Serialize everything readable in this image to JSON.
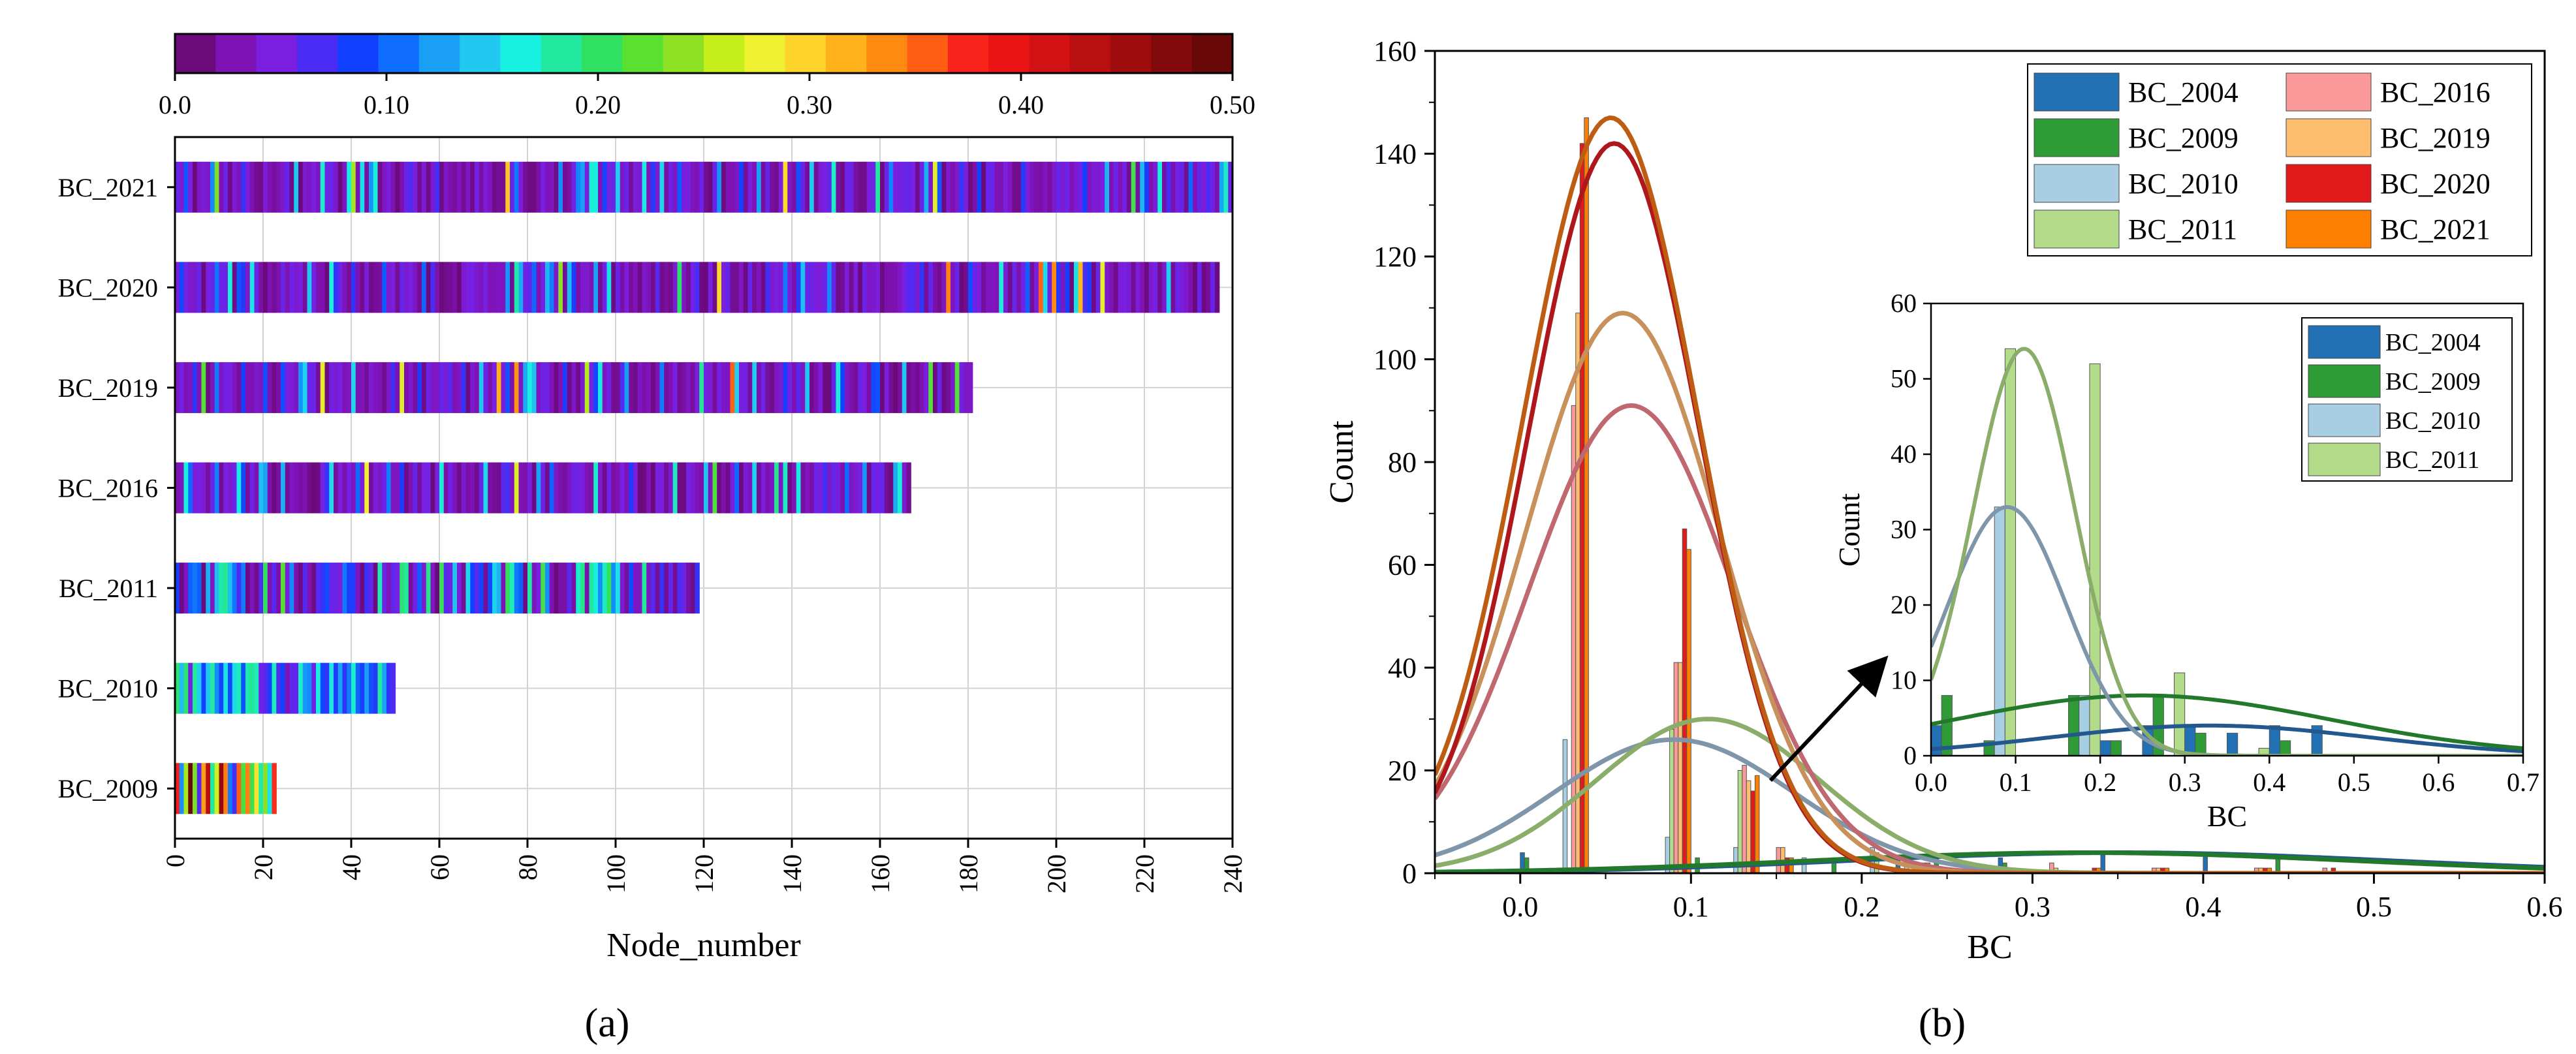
{
  "chart_data": [
    {
      "panel": "a",
      "type": "heatmap",
      "caption": "(a)",
      "xlabel": "Node_number",
      "ylabel": "",
      "xlim": [
        0,
        240
      ],
      "xticks": [
        "0",
        "20",
        "40",
        "60",
        "80",
        "100",
        "120",
        "140",
        "160",
        "180",
        "200",
        "220",
        "240"
      ],
      "colorbar": {
        "ticks": [
          "0.0",
          "0.10",
          "0.20",
          "0.30",
          "0.40",
          "0.50"
        ],
        "range": [
          0,
          0.5
        ],
        "stops": [
          "#6b0a7a",
          "#7f12b5",
          "#7a1fe0",
          "#4b2cf5",
          "#1240ff",
          "#0f6dff",
          "#19a0f5",
          "#21c8f0",
          "#18f0e0",
          "#22e8a0",
          "#30e060",
          "#5ae030",
          "#8ee025",
          "#c6ee1a",
          "#eef030",
          "#ffd42a",
          "#ffb21c",
          "#ff8a12",
          "#ff5e14",
          "#f8241c",
          "#ea1414",
          "#d21212",
          "#b80f10",
          "#9e0c0e",
          "#830a0c",
          "#680808"
        ]
      },
      "rows": [
        {
          "label": "BC_2021",
          "nodes": 240
        },
        {
          "label": "BC_2020",
          "nodes": 237
        },
        {
          "label": "BC_2019",
          "nodes": 181
        },
        {
          "label": "BC_2016",
          "nodes": 167
        },
        {
          "label": "BC_2011",
          "nodes": 119
        },
        {
          "label": "BC_2010",
          "nodes": 50
        },
        {
          "label": "BC_2009",
          "nodes": 23
        }
      ]
    },
    {
      "panel": "b",
      "type": "bar",
      "caption": "(b)",
      "xlabel": "BC",
      "ylabel": "Count",
      "xlim": [
        -0.05,
        0.6
      ],
      "ylim": [
        0,
        160
      ],
      "xticks": [
        "0.0",
        "0.1",
        "0.2",
        "0.3",
        "0.4",
        "0.5",
        "0.6"
      ],
      "yticks": [
        "0",
        "20",
        "40",
        "60",
        "80",
        "100",
        "120",
        "140",
        "160"
      ],
      "bin_centers": [
        0.01,
        0.03,
        0.05,
        0.09,
        0.11,
        0.13,
        0.15,
        0.17,
        0.19,
        0.21,
        0.23,
        0.25,
        0.27,
        0.29,
        0.31,
        0.33,
        0.35,
        0.37,
        0.39,
        0.41,
        0.43,
        0.45,
        0.47,
        0.49
      ],
      "series": [
        {
          "name": "BC_2004",
          "color": "#2271b5",
          "values": [
            4,
            0,
            0,
            0,
            0,
            0,
            0,
            0,
            0,
            0,
            3,
            0,
            0,
            3,
            0,
            0,
            4,
            0,
            0,
            4,
            0,
            0,
            0,
            0
          ]
        },
        {
          "name": "BC_2009",
          "color": "#2e9b36",
          "values": [
            3,
            0,
            0,
            0,
            3,
            0,
            0,
            0,
            3,
            0,
            0,
            3,
            0,
            2,
            0,
            0,
            0,
            0,
            0,
            0,
            0,
            3,
            0,
            0
          ]
        },
        {
          "name": "BC_2010",
          "color": "#a7cee3",
          "values": [
            0,
            26,
            0,
            7,
            0,
            5,
            0,
            3,
            0,
            5,
            3,
            0,
            0,
            0,
            0,
            0,
            0,
            0,
            0,
            0,
            0,
            0,
            0,
            0
          ]
        },
        {
          "name": "BC_2011",
          "color": "#b2dc8a",
          "values": [
            0,
            0,
            0,
            28,
            0,
            20,
            0,
            0,
            0,
            4,
            0,
            0,
            0,
            0,
            0,
            0,
            0,
            0,
            0,
            0,
            0,
            0,
            0,
            0
          ]
        },
        {
          "name": "BC_2016",
          "color": "#f9999a",
          "values": [
            0,
            91,
            0,
            41,
            0,
            21,
            5,
            0,
            0,
            0,
            2,
            0,
            1,
            0,
            2,
            0,
            0,
            1,
            0,
            0,
            1,
            0,
            1,
            0
          ]
        },
        {
          "name": "BC_2019",
          "color": "#fdbf6f",
          "values": [
            0,
            109,
            0,
            41,
            0,
            18,
            5,
            0,
            0,
            0,
            2,
            0,
            1,
            0,
            1,
            0,
            0,
            1,
            0,
            0,
            1,
            0,
            0,
            0
          ]
        },
        {
          "name": "BC_2020",
          "color": "#e31a1c",
          "values": [
            0,
            142,
            0,
            67,
            0,
            16,
            3,
            0,
            0,
            0,
            2,
            0,
            1,
            0,
            0,
            1,
            0,
            1,
            0,
            0,
            1,
            0,
            1,
            0
          ]
        },
        {
          "name": "BC_2021",
          "color": "#ff7f00",
          "values": [
            0,
            147,
            0,
            63,
            0,
            19,
            3,
            0,
            0,
            0,
            2,
            0,
            1,
            0,
            0,
            1,
            0,
            1,
            0,
            0,
            1,
            0,
            0,
            0
          ]
        }
      ],
      "fits": [
        {
          "name": "BC_2004",
          "color": "#23588f",
          "mean": 0.35,
          "sd": 0.16,
          "peak": 4
        },
        {
          "name": "BC_2009",
          "color": "#23792b",
          "mean": 0.33,
          "sd": 0.16,
          "peak": 4
        },
        {
          "name": "BC_2010",
          "color": "#7f95aa",
          "mean": 0.09,
          "sd": 0.07,
          "peak": 26
        },
        {
          "name": "BC_2011",
          "color": "#8aad6a",
          "mean": 0.11,
          "sd": 0.065,
          "peak": 30
        },
        {
          "name": "BC_2016",
          "color": "#bf6870",
          "mean": 0.065,
          "sd": 0.06,
          "peak": 91
        },
        {
          "name": "BC_2019",
          "color": "#c8905a",
          "mean": 0.06,
          "sd": 0.057,
          "peak": 109
        },
        {
          "name": "BC_2020",
          "color": "#b0171c",
          "mean": 0.055,
          "sd": 0.05,
          "peak": 142
        },
        {
          "name": "BC_2021",
          "color": "#bd5c12",
          "mean": 0.053,
          "sd": 0.051,
          "peak": 147
        }
      ],
      "legend": [
        "BC_2004",
        "BC_2016",
        "BC_2009",
        "BC_2019",
        "BC_2010",
        "BC_2020",
        "BC_2011",
        "BC_2021"
      ],
      "inset": {
        "xlabel": "BC",
        "ylabel": "Count",
        "xlim": [
          0,
          0.7
        ],
        "ylim": [
          0,
          60
        ],
        "xticks": [
          "0.0",
          "0.1",
          "0.2",
          "0.3",
          "0.4",
          "0.5",
          "0.6",
          "0.7"
        ],
        "yticks": [
          "0",
          "10",
          "20",
          "30",
          "40",
          "50",
          "60"
        ],
        "bin_centers": [
          0.025,
          0.075,
          0.125,
          0.175,
          0.225,
          0.275,
          0.325,
          0.375,
          0.425,
          0.475,
          0.525,
          0.575,
          0.625,
          0.675
        ],
        "series": [
          {
            "name": "BC_2004",
            "color": "#2271b5",
            "values": [
              4,
              0,
              0,
              0,
              2,
              4,
              4,
              3,
              4,
              4,
              0,
              0,
              0,
              0
            ]
          },
          {
            "name": "BC_2009",
            "color": "#2e9b36",
            "values": [
              8,
              2,
              0,
              8,
              2,
              8,
              3,
              0,
              2,
              0,
              0,
              0,
              0,
              0
            ]
          },
          {
            "name": "BC_2010",
            "color": "#a7cee3",
            "values": [
              0,
              33,
              0,
              8,
              0,
              0,
              0,
              0,
              0,
              0,
              0,
              0,
              0,
              0
            ]
          },
          {
            "name": "BC_2011",
            "color": "#b2dc8a",
            "values": [
              0,
              54,
              0,
              52,
              0,
              11,
              0,
              1,
              0,
              0,
              0,
              0,
              0,
              0
            ]
          }
        ],
        "fits": [
          {
            "name": "BC_2004",
            "color": "#23588f",
            "mean": 0.33,
            "sd": 0.19,
            "peak": 4
          },
          {
            "name": "BC_2009",
            "color": "#23792b",
            "mean": 0.25,
            "sd": 0.22,
            "peak": 8
          },
          {
            "name": "BC_2010",
            "color": "#7f95aa",
            "mean": 0.09,
            "sd": 0.07,
            "peak": 33
          },
          {
            "name": "BC_2011",
            "color": "#8aad6a",
            "mean": 0.11,
            "sd": 0.06,
            "peak": 54
          }
        ],
        "legend": [
          "BC_2004",
          "BC_2009",
          "BC_2010",
          "BC_2011"
        ]
      }
    }
  ]
}
